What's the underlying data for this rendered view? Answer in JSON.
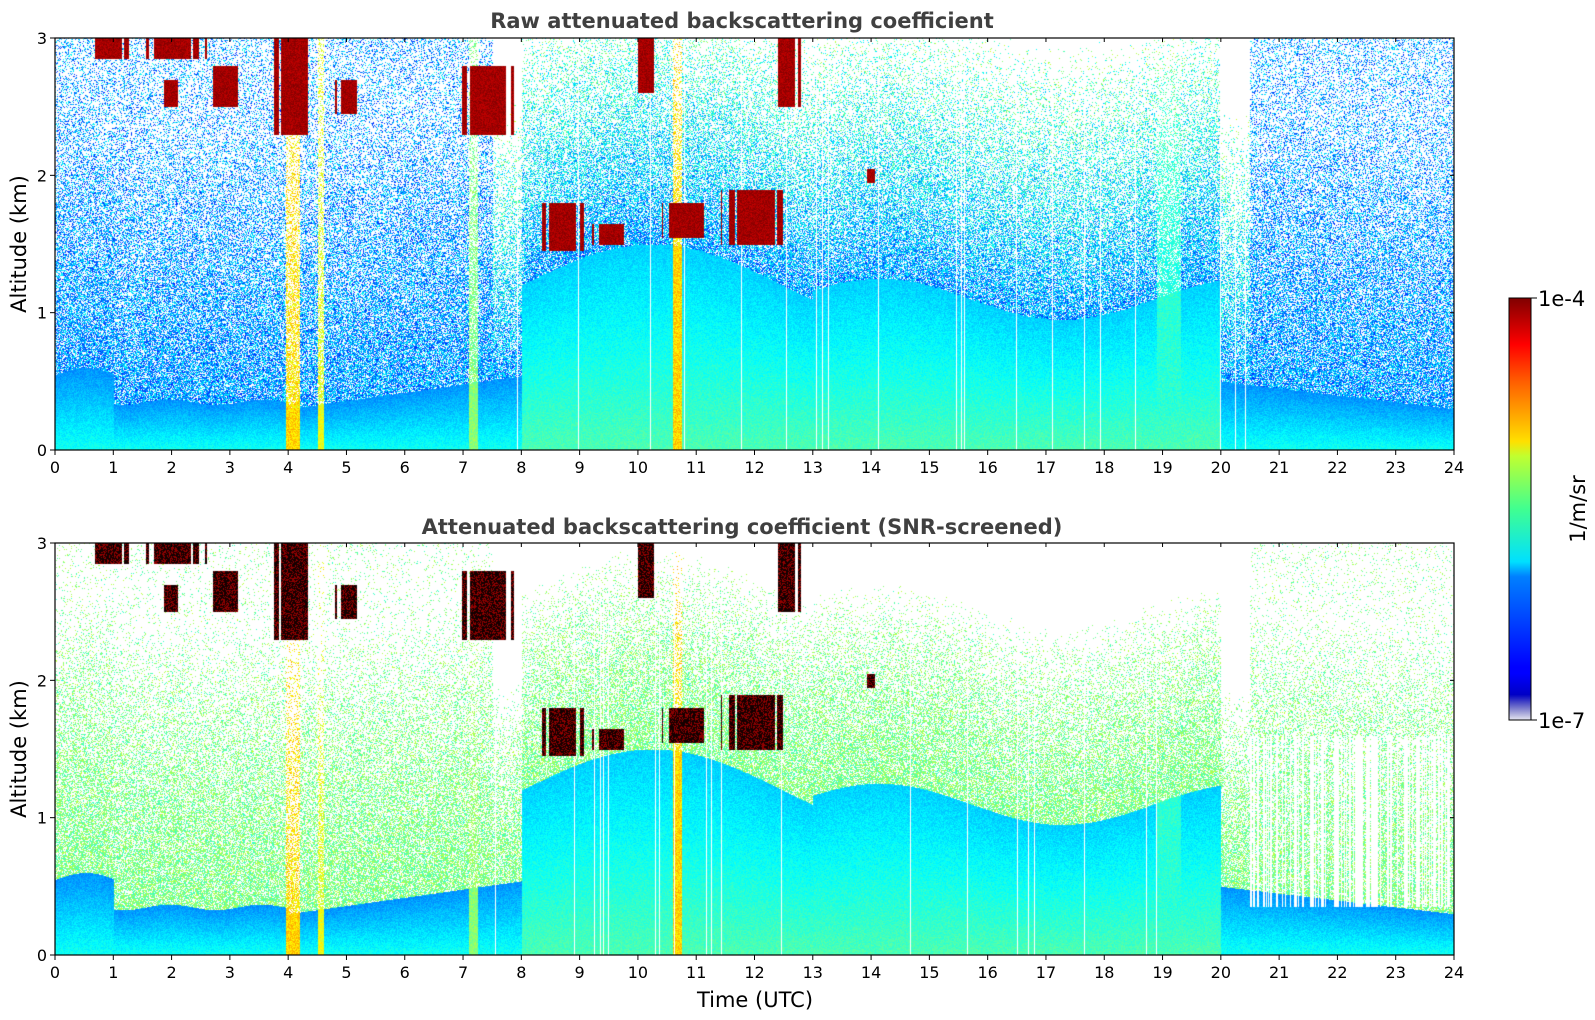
{
  "chart_data": [
    {
      "type": "heatmap",
      "title": "Raw attenuated backscattering coefficient",
      "xlabel": "",
      "ylabel": "Altitude (km)",
      "xlim": [
        0,
        24
      ],
      "ylim": [
        0,
        3
      ],
      "x_ticks": [
        "0",
        "1",
        "2",
        "3",
        "4",
        "5",
        "6",
        "7",
        "8",
        "9",
        "10",
        "11",
        "12",
        "13",
        "14",
        "15",
        "16",
        "17",
        "18",
        "19",
        "20",
        "21",
        "22",
        "23",
        "24"
      ],
      "y_ticks": [
        "0",
        "1",
        "2",
        "3"
      ],
      "screened": false
    },
    {
      "type": "heatmap",
      "title": "Attenuated backscattering coefficient (SNR-screened)",
      "xlabel": "Time (UTC)",
      "ylabel": "Altitude (km)",
      "xlim": [
        0,
        24
      ],
      "ylim": [
        0,
        3
      ],
      "x_ticks": [
        "0",
        "1",
        "2",
        "3",
        "4",
        "5",
        "6",
        "7",
        "8",
        "9",
        "10",
        "11",
        "12",
        "13",
        "14",
        "15",
        "16",
        "17",
        "18",
        "19",
        "20",
        "21",
        "22",
        "23",
        "24"
      ],
      "y_ticks": [
        "0",
        "1",
        "2",
        "3"
      ],
      "screened": true
    }
  ],
  "colorbar": {
    "label": "1/m/sr",
    "min_label": "1e-7",
    "max_label": "1e-4",
    "colormap": "jet",
    "scale": "log"
  },
  "colors": {
    "low": "#0000ff",
    "mid": "#00ffff",
    "high": "#800000",
    "title": "#404040"
  }
}
